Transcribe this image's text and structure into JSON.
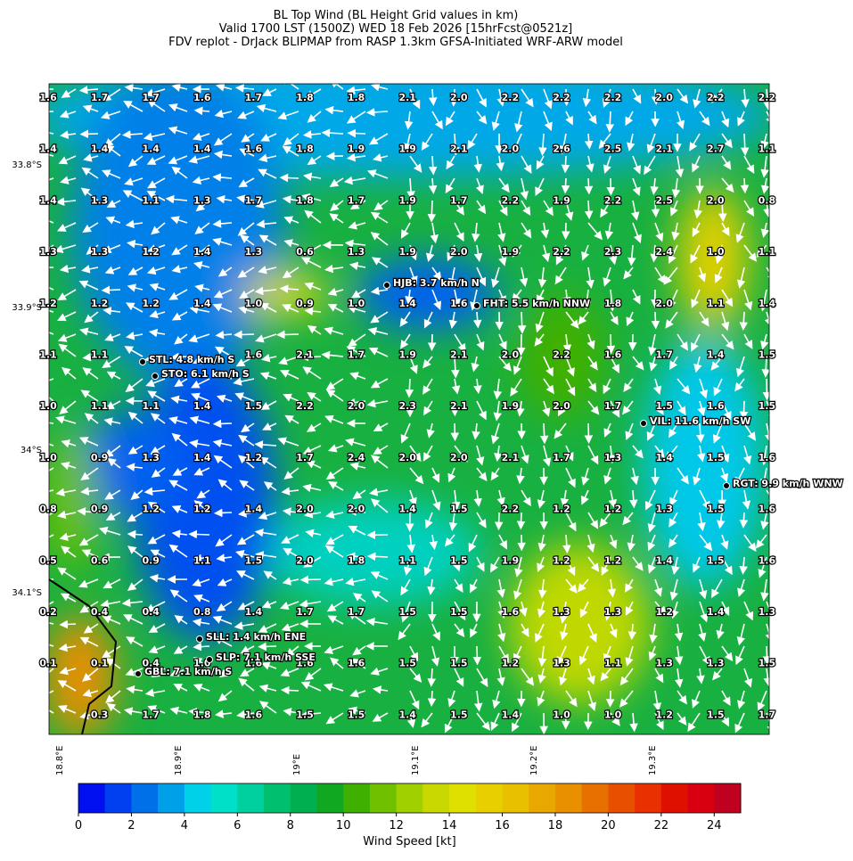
{
  "title_lines": [
    "BL Top Wind (BL Height Grid values in km)",
    "Valid 1700 LST (1500Z) WED 18 Feb 2026 [15hrFcst@0521z]",
    "FDV replot - DrJack BLIPMAP from RASP 1.3km GFSA-Initiated WRF-ARW model"
  ],
  "grid": {
    "rows": [
      [
        "1.6",
        "1.7",
        "1.7",
        "1.6",
        "1.7",
        "1.8",
        "1.8",
        "2.1",
        "2.0",
        "2.2",
        "2.2",
        "2.2",
        "2.0",
        "2.2",
        "2.2"
      ],
      [
        "1.4",
        "1.4",
        "1.4",
        "1.4",
        "1.6",
        "1.8",
        "1.9",
        "1.9",
        "2.1",
        "2.0",
        "2.6",
        "2.5",
        "2.1",
        "2.7",
        "1.1"
      ],
      [
        "1.4",
        "1.3",
        "1.1",
        "1.3",
        "1.7",
        "1.8",
        "1.7",
        "1.9",
        "1.7",
        "2.2",
        "1.9",
        "2.2",
        "2.5",
        "2.0",
        "0.8"
      ],
      [
        "1.3",
        "1.3",
        "1.2",
        "1.4",
        "1.3",
        "0.6",
        "1.3",
        "1.9",
        "2.0",
        "1.9",
        "2.2",
        "2.3",
        "2.4",
        "1.0",
        "1.1"
      ],
      [
        "1.2",
        "1.2",
        "1.2",
        "1.4",
        "1.0",
        "0.9",
        "1.0",
        "1.4",
        "1.6",
        null,
        null,
        "1.8",
        "2.0",
        "1.1",
        "1.4"
      ],
      [
        "1.1",
        "1.1",
        null,
        null,
        "1.6",
        "2.1",
        "1.7",
        "1.9",
        "2.1",
        "2.0",
        "2.2",
        "1.6",
        "1.7",
        "1.4",
        "1.5"
      ],
      [
        "1.0",
        "1.1",
        "1.1",
        "1.4",
        "1.5",
        "2.2",
        "2.0",
        "2.3",
        "2.1",
        "1.9",
        "2.0",
        "1.7",
        "1.5",
        "1.6",
        "1.5"
      ],
      [
        "1.0",
        "0.9",
        "1.3",
        "1.4",
        "1.2",
        "1.7",
        "2.4",
        "2.0",
        "2.0",
        "2.1",
        "1.7",
        "1.3",
        "1.4",
        "1.5",
        "1.6"
      ],
      [
        "0.8",
        "0.9",
        "1.2",
        "1.2",
        "1.4",
        "2.0",
        "2.0",
        "1.4",
        "1.5",
        "2.2",
        "1.2",
        "1.2",
        "1.3",
        "1.5",
        "1.6"
      ],
      [
        "0.5",
        "0.6",
        "0.9",
        "1.1",
        "1.5",
        "2.0",
        "1.8",
        "1.1",
        "1.5",
        "1.9",
        "1.2",
        "1.2",
        "1.4",
        "1.5",
        "1.6"
      ],
      [
        "0.2",
        "0.4",
        "0.4",
        "0.8",
        "1.4",
        "1.7",
        "1.7",
        "1.5",
        "1.5",
        "1.6",
        "1.3",
        "1.3",
        "1.2",
        "1.4",
        "1.3"
      ],
      [
        "0.1",
        "0.1",
        "0.4",
        "1.0",
        "1.6",
        "1.6",
        "1.6",
        "1.5",
        "1.5",
        "1.2",
        "1.3",
        "1.1",
        "1.3",
        "1.3",
        "1.5"
      ],
      [
        null,
        "0.3",
        "1.7",
        "1.8",
        "1.6",
        "1.5",
        "1.5",
        "1.4",
        "1.5",
        "1.4",
        "1.0",
        "1.0",
        "1.2",
        "1.5",
        "1.7"
      ]
    ]
  },
  "stations": [
    {
      "label": "HJB: 3.7 km/h N"
    },
    {
      "label": "FHT: 5.5 km/h NNW"
    },
    {
      "label": "STL: 4.8 km/h S"
    },
    {
      "label": "STO: 6.1 km/h S"
    },
    {
      "label": "VIL: 11.6 km/h SW"
    },
    {
      "label": "RGT: 9.9 km/h WNW"
    },
    {
      "label": "SLL: 1.4 km/h ENE"
    },
    {
      "label": "SLP: 7.1 km/h SSE"
    },
    {
      "label": "GBL: 7.1 km/h S"
    }
  ],
  "lat_labels": [
    "33.8°S",
    "33.9°S",
    "34°S",
    "34.1°S"
  ],
  "lon_labels": [
    "18.8°E",
    "18.9°E",
    "19°E",
    "19.1°E",
    "19.2°E",
    "19.3°E"
  ],
  "colorbar": {
    "label": "Wind Speed [kt]",
    "lim": [
      0,
      25
    ],
    "ticks": [
      0,
      2,
      4,
      6,
      8,
      10,
      12,
      14,
      16,
      18,
      20,
      22,
      24
    ],
    "colors": [
      "#0010f0",
      "#0040f0",
      "#0070e8",
      "#00a0e8",
      "#00d0e8",
      "#00e0c8",
      "#00d0a0",
      "#00c070",
      "#00b050",
      "#10a820",
      "#40b000",
      "#70c000",
      "#a0d000",
      "#c8d800",
      "#e0e000",
      "#e8d000",
      "#e8c000",
      "#e8a800",
      "#e89000",
      "#e87000",
      "#e85000",
      "#e83000",
      "#e01000",
      "#d80010",
      "#c00020"
    ]
  }
}
